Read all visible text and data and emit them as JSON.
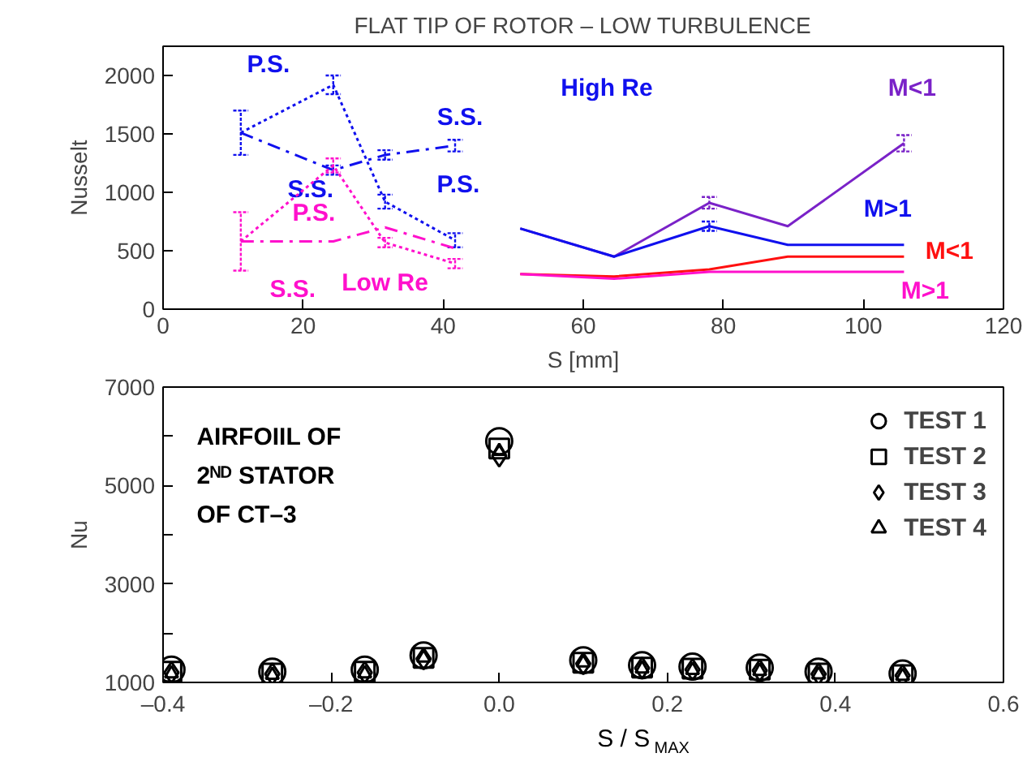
{
  "chart_data": [
    {
      "type": "line",
      "title": "FLAT TIP OF ROTOR – LOW TURBULENCE",
      "xlabel": "S [mm]",
      "ylabel": "Nusselt",
      "xlim": [
        0,
        120
      ],
      "ylim": [
        0,
        2250
      ],
      "xticks": [
        0,
        20,
        40,
        60,
        80,
        100,
        120
      ],
      "yticks": [
        0,
        500,
        1000,
        1500,
        2000
      ],
      "grid": false,
      "legend": false,
      "marker": "none",
      "series": [
        {
          "name": "P.S.",
          "color": "#1010ee",
          "line_style": "dotted",
          "x": [
            11.1,
            24.3,
            31.7,
            41.7
          ],
          "values": [
            1510,
            1920,
            920,
            590
          ],
          "errors": [
            190,
            80,
            60,
            60
          ]
        },
        {
          "name": "S.S.",
          "color": "#1010ee",
          "line_style": "dashed",
          "x": [
            11.1,
            24.3,
            31.7,
            41.7
          ],
          "values": [
            1510,
            1190,
            1320,
            1400
          ],
          "errors": [
            null,
            40,
            40,
            50
          ]
        },
        {
          "name": "P.S.",
          "color": "#ff10cc",
          "line_style": "dotted",
          "x": [
            11.1,
            24.3,
            31.7,
            41.7
          ],
          "values": [
            580,
            1230,
            570,
            390
          ],
          "errors": [
            250,
            60,
            40,
            40
          ]
        },
        {
          "name": "S.S.",
          "color": "#ff10cc",
          "line_style": "dashed",
          "x": [
            11.1,
            24.3,
            31.7,
            41.7
          ],
          "values": [
            580,
            580,
            700,
            520
          ]
        },
        {
          "name": "M<1",
          "color": "#7a22c8",
          "line_style": "solid",
          "x": [
            51,
            64.4,
            78,
            89.2,
            105.8
          ],
          "values": [
            690,
            450,
            910,
            710,
            1420
          ],
          "errors": [
            null,
            null,
            50,
            null,
            70
          ]
        },
        {
          "name": "M>1",
          "color": "#1010ee",
          "line_style": "solid",
          "x": [
            51,
            64.4,
            78,
            89.2,
            105.8
          ],
          "values": [
            690,
            450,
            710,
            550,
            550
          ],
          "errors": [
            null,
            null,
            40,
            null,
            null
          ]
        },
        {
          "name": "M<1",
          "color": "#ff1010",
          "line_style": "solid",
          "x": [
            51,
            64.4,
            78,
            89.2,
            105.8
          ],
          "values": [
            300,
            280,
            340,
            450,
            450
          ]
        },
        {
          "name": "M>1",
          "color": "#ff10cc",
          "line_style": "solid",
          "x": [
            51,
            64.4,
            78,
            89.2,
            105.8
          ],
          "values": [
            300,
            260,
            320,
            320,
            320
          ]
        }
      ],
      "annotations": [
        "High Re",
        "Low Re"
      ]
    },
    {
      "type": "scatter",
      "xlabel": "S / S$_{MAX}$",
      "ylabel": "Nu",
      "xlim": [
        -0.4,
        0.6
      ],
      "ylim": [
        1000,
        7000
      ],
      "xticks": [
        {
          "value": -0.4,
          "label": "–0.4"
        },
        {
          "value": -0.2,
          "label": "–0.2"
        },
        {
          "value": 0,
          "label": "0.0"
        },
        {
          "value": 0.2,
          "label": "0.2"
        },
        {
          "value": 0.4,
          "label": "0.4"
        },
        {
          "value": 0.6,
          "label": "0.6"
        }
      ],
      "yticks": [
        1000,
        {
          "value": 2000,
          "label": null
        },
        3000,
        {
          "value": 4000,
          "label": null
        },
        5000,
        {
          "value": 6000,
          "label": null
        },
        7000
      ],
      "grid": false,
      "legend": "top right",
      "x": [
        -0.39,
        -0.27,
        -0.16,
        -0.09,
        0,
        0.1,
        0.17,
        0.23,
        0.31,
        0.38,
        0.48
      ],
      "series": [
        {
          "name": "TEST 1",
          "color": "#000000",
          "marker": "circle",
          "values": [
            1260,
            1220,
            1260,
            1550,
            5900,
            1450,
            1350,
            1320,
            1300,
            1220,
            1180
          ]
        },
        {
          "name": "TEST 2",
          "color": "#000000",
          "marker": "square",
          "values": [
            1220,
            1180,
            1220,
            1500,
            5750,
            1400,
            1300,
            1280,
            1260,
            1180,
            1150
          ]
        },
        {
          "name": "TEST 3",
          "color": "#000000",
          "marker": "diamond",
          "values": [
            1200,
            1170,
            1200,
            1480,
            5600,
            1380,
            1290,
            1260,
            1240,
            1170,
            1140
          ]
        },
        {
          "name": "TEST 4",
          "color": "#000000",
          "marker": "triangle",
          "values": [
            1180,
            1150,
            1180,
            1500,
            5700,
            1400,
            1280,
            1250,
            1230,
            1160,
            1130
          ]
        }
      ],
      "annotations": [
        "AIRFOIIL OF\n2ᴺᴰ STATOR\nOF CT–3"
      ]
    }
  ]
}
